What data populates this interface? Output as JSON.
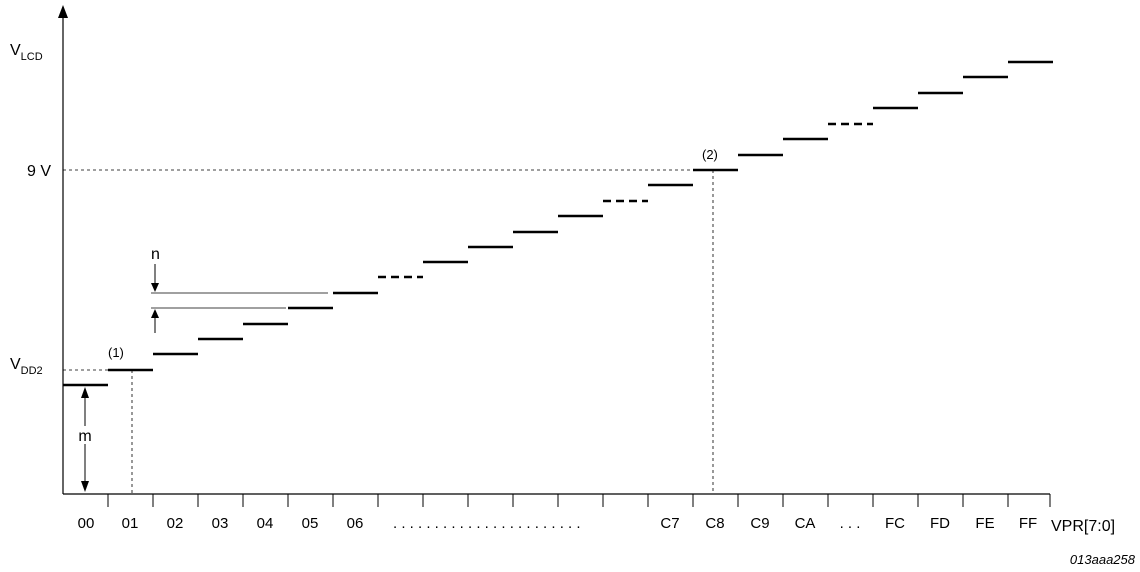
{
  "y_axis": {
    "vlcd_main": "V",
    "vlcd_sub": "LCD",
    "nine_volt": "9 V",
    "vdd2_main": "V",
    "vdd2_sub": "DD2"
  },
  "x_axis": {
    "title": "VPR[7:0]",
    "codes": [
      "00",
      "01",
      "02",
      "03",
      "04",
      "05",
      "06",
      "C7",
      "C8",
      "C9",
      "CA",
      "FC",
      "FD",
      "FE",
      "FF"
    ],
    "ellipsis_long": ". . . . . . . . . . . . . . . . . . . . . . .",
    "ellipsis_short": ". . ."
  },
  "annotations": {
    "note1": "(1)",
    "note2": "(2)",
    "step_label": "n",
    "offset_label": "m"
  },
  "figure_id": "013aaa258"
}
